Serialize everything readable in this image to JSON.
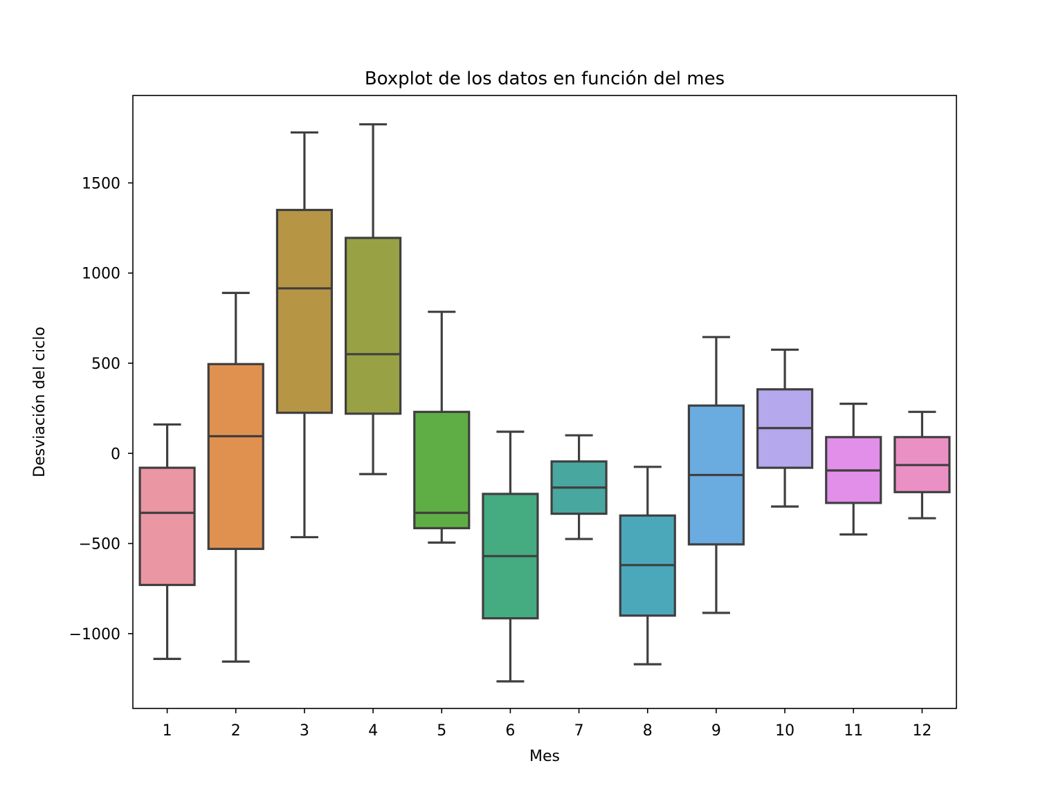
{
  "chart_data": {
    "type": "boxplot",
    "title": "Boxplot de los datos en función del mes",
    "xlabel": "Mes",
    "ylabel": "Desviación del ciclo",
    "ylim": [
      -1415,
      1985
    ],
    "yticks": [
      -1000,
      -500,
      0,
      500,
      1000,
      1500
    ],
    "ytick_labels": [
      "−1000",
      "−500",
      "0",
      "500",
      "1000",
      "1500"
    ],
    "grid": false,
    "legend": "none",
    "line_color": "#3f3f3f",
    "categories": [
      "1",
      "2",
      "3",
      "4",
      "5",
      "6",
      "7",
      "8",
      "9",
      "10",
      "11",
      "12"
    ],
    "boxes": [
      {
        "label": "1",
        "whisker_low": -1140,
        "q1": -730,
        "median": -330,
        "q3": -80,
        "whisker_high": 160,
        "color": "#ea96a3"
      },
      {
        "label": "2",
        "whisker_low": -1155,
        "q1": -530,
        "median": 95,
        "q3": 495,
        "whisker_high": 890,
        "color": "#e1914f"
      },
      {
        "label": "3",
        "whisker_low": -465,
        "q1": 225,
        "median": 915,
        "q3": 1350,
        "whisker_high": 1780,
        "color": "#b69545"
      },
      {
        "label": "4",
        "whisker_low": -115,
        "q1": 220,
        "median": 550,
        "q3": 1195,
        "whisker_high": 1825,
        "color": "#98a245"
      },
      {
        "label": "5",
        "whisker_low": -495,
        "q1": -415,
        "median": -330,
        "q3": 230,
        "whisker_high": 785,
        "color": "#5eae45"
      },
      {
        "label": "6",
        "whisker_low": -1265,
        "q1": -915,
        "median": -570,
        "q3": -225,
        "whisker_high": 120,
        "color": "#45ab81"
      },
      {
        "label": "7",
        "whisker_low": -475,
        "q1": -335,
        "median": -190,
        "q3": -45,
        "whisker_high": 100,
        "color": "#48a89f"
      },
      {
        "label": "8",
        "whisker_low": -1170,
        "q1": -900,
        "median": -620,
        "q3": -345,
        "whisker_high": -75,
        "color": "#4ba8bb"
      },
      {
        "label": "9",
        "whisker_low": -885,
        "q1": -505,
        "median": -120,
        "q3": 265,
        "whisker_high": 645,
        "color": "#6aabe0"
      },
      {
        "label": "10",
        "whisker_low": -295,
        "q1": -80,
        "median": 140,
        "q3": 355,
        "whisker_high": 575,
        "color": "#b6a8ec"
      },
      {
        "label": "11",
        "whisker_low": -450,
        "q1": -275,
        "median": -95,
        "q3": 90,
        "whisker_high": 275,
        "color": "#e18fe9"
      },
      {
        "label": "12",
        "whisker_low": -360,
        "q1": -215,
        "median": -65,
        "q3": 90,
        "whisker_high": 230,
        "color": "#ea90c4"
      }
    ]
  }
}
